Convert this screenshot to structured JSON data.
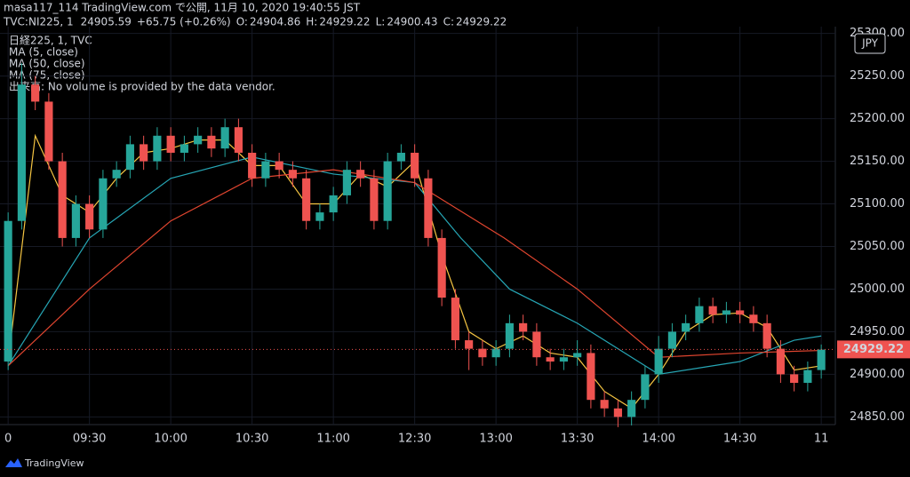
{
  "header": {
    "line1": "masa117_114 TradingView.com で公開, 11月 10, 2020 19:40:55 JST",
    "symbol": "TVC:NI225, 1",
    "price": "24905.59",
    "change": "+65.75 (+0.26%)",
    "ohlc": [
      {
        "label": "O:",
        "value": "24904.86"
      },
      {
        "label": "H:",
        "value": "24929.22"
      },
      {
        "label": "L:",
        "value": "24900.43"
      },
      {
        "label": "C:",
        "value": "24929.22"
      }
    ]
  },
  "footer": {
    "brand": "TradingView"
  },
  "chart_data": {
    "type": "candlestick",
    "legend_title": "日経225, 1, TVC",
    "volume_note": "出来高: No volume is provided by the data vendor.",
    "currency": "JPY",
    "up_color": "#26a69a",
    "down_color": "#ef5350",
    "grid": true,
    "x": [
      0,
      5,
      10,
      15,
      20,
      25,
      30,
      35,
      40,
      45,
      50,
      55,
      60,
      65,
      70,
      75,
      80,
      85,
      90,
      95,
      100,
      105,
      110,
      115,
      120,
      125,
      130,
      135,
      140,
      145,
      150,
      155,
      160,
      165,
      170,
      175,
      180,
      185,
      190,
      195,
      200,
      205,
      210,
      215,
      220,
      225,
      230,
      235,
      240,
      245,
      250,
      255,
      260,
      265,
      270,
      275,
      280,
      285,
      290,
      295,
      300
    ],
    "open": [
      24915,
      25080,
      25240,
      25220,
      25150,
      25060,
      25100,
      25070,
      25130,
      25140,
      25170,
      25150,
      25180,
      25160,
      25170,
      25180,
      25165,
      25190,
      25160,
      25130,
      25150,
      25140,
      25130,
      25080,
      25090,
      25110,
      25140,
      25130,
      25080,
      25150,
      25160,
      25130,
      25060,
      24990,
      24940,
      24930,
      24920,
      24930,
      24960,
      24950,
      24920,
      24915,
      24920,
      24925,
      24870,
      24860,
      24850,
      24870,
      24900,
      24930,
      24950,
      24960,
      24980,
      24970,
      24975,
      24970,
      24960,
      24930,
      24900,
      24890,
      24905
    ],
    "high": [
      25090,
      25265,
      25250,
      25230,
      25160,
      25110,
      25110,
      25140,
      25150,
      25180,
      25180,
      25190,
      25190,
      25180,
      25190,
      25190,
      25200,
      25200,
      25170,
      25160,
      25160,
      25150,
      25140,
      25100,
      25120,
      25150,
      25150,
      25140,
      25160,
      25170,
      25170,
      25140,
      25070,
      25000,
      24950,
      24940,
      24940,
      24970,
      24970,
      24960,
      24930,
      24930,
      24940,
      24935,
      24880,
      24870,
      24880,
      24910,
      24945,
      24960,
      24970,
      24990,
      24990,
      24985,
      24985,
      24980,
      24970,
      24940,
      24910,
      24915,
      24935
    ],
    "low": [
      24905,
      25070,
      25210,
      25140,
      25050,
      25050,
      25060,
      25060,
      25120,
      25130,
      25140,
      25140,
      25150,
      25150,
      25160,
      25155,
      25155,
      25150,
      25120,
      25120,
      25130,
      25120,
      25070,
      25070,
      25080,
      25100,
      25120,
      25070,
      25070,
      25140,
      25120,
      25050,
      24980,
      24930,
      24905,
      24910,
      24910,
      24920,
      24940,
      24910,
      24905,
      24905,
      24910,
      24860,
      24850,
      24838,
      24840,
      24860,
      24890,
      24920,
      24940,
      24950,
      24960,
      24960,
      24960,
      24950,
      24920,
      24890,
      24880,
      24880,
      24895
    ],
    "close": [
      25080,
      25240,
      25220,
      25150,
      25060,
      25100,
      25070,
      25130,
      25140,
      25170,
      25150,
      25180,
      25160,
      25170,
      25180,
      25165,
      25190,
      25160,
      25130,
      25150,
      25140,
      25130,
      25080,
      25090,
      25110,
      25140,
      25130,
      25080,
      25150,
      25160,
      25130,
      25060,
      24990,
      24940,
      24930,
      24920,
      24930,
      24960,
      24950,
      24920,
      24915,
      24920,
      24925,
      24870,
      24860,
      24850,
      24870,
      24900,
      24930,
      24950,
      24960,
      24980,
      24970,
      24975,
      24970,
      24960,
      24930,
      24900,
      24890,
      24905,
      24929
    ],
    "series": [
      {
        "name": "MA (5, close)",
        "color": "#f5c542",
        "x": [
          0,
          10,
          20,
          30,
          40,
          50,
          60,
          70,
          80,
          90,
          100,
          110,
          120,
          130,
          140,
          150,
          160,
          170,
          180,
          190,
          200,
          210,
          220,
          230,
          240,
          250,
          260,
          270,
          280,
          290,
          300
        ],
        "values": [
          24915,
          25180,
          25110,
          25090,
          25130,
          25160,
          25165,
          25175,
          25175,
          25145,
          25145,
          25100,
          25100,
          25135,
          25120,
          25150,
          25040,
          24950,
          24930,
          24945,
          24925,
          24920,
          24880,
          24860,
          24900,
          24950,
          24970,
          24972,
          24955,
          24905,
          24910
        ]
      },
      {
        "name": "MA (50, close)",
        "color": "#26a6b5",
        "x": [
          0,
          30,
          60,
          90,
          120,
          150,
          167,
          185,
          210,
          240,
          270,
          290,
          300
        ],
        "values": [
          24910,
          25060,
          25130,
          25155,
          25135,
          25125,
          25060,
          25000,
          24960,
          24900,
          24915,
          24940,
          24945
        ]
      },
      {
        "name": "MA (75, close)",
        "color": "#e0452f",
        "x": [
          0,
          30,
          60,
          90,
          120,
          150,
          183,
          210,
          240,
          270,
          300
        ],
        "values": [
          24910,
          25000,
          25080,
          25130,
          25140,
          25125,
          25060,
          25000,
          24920,
          24925,
          24928
        ]
      }
    ],
    "last_price": {
      "value": 24929.22,
      "label": "24929.22"
    },
    "xlim": [
      -3,
      305.2
    ],
    "ylim": [
      24841,
      25308
    ],
    "xticks": [
      0,
      {
        "value": 30,
        "label": "09:30"
      },
      {
        "value": 60,
        "label": "10:00"
      },
      {
        "value": 90,
        "label": "10:30"
      },
      {
        "value": 120,
        "label": "11:00"
      },
      {
        "value": 150,
        "label": "12:30"
      },
      {
        "value": 180,
        "label": "13:00"
      },
      {
        "value": 210,
        "label": "13:30"
      },
      {
        "value": 240,
        "label": "14:00"
      },
      {
        "value": 270,
        "label": "14:30"
      },
      {
        "value": 300,
        "label": "11"
      }
    ],
    "yticks": [
      {
        "value": 24850,
        "label": "24850.00"
      },
      {
        "value": 24900,
        "label": "24900.00"
      },
      {
        "value": 24950,
        "label": "24950.00"
      },
      {
        "value": 25000,
        "label": "25000.00"
      },
      {
        "value": 25050,
        "label": "25050.00"
      },
      {
        "value": 25100,
        "label": "25100.00"
      },
      {
        "value": 25150,
        "label": "25150.00"
      },
      {
        "value": 25200,
        "label": "25200.00"
      },
      {
        "value": 25250,
        "label": "25250.00"
      },
      {
        "value": 25300,
        "label": "25300.00"
      }
    ]
  }
}
